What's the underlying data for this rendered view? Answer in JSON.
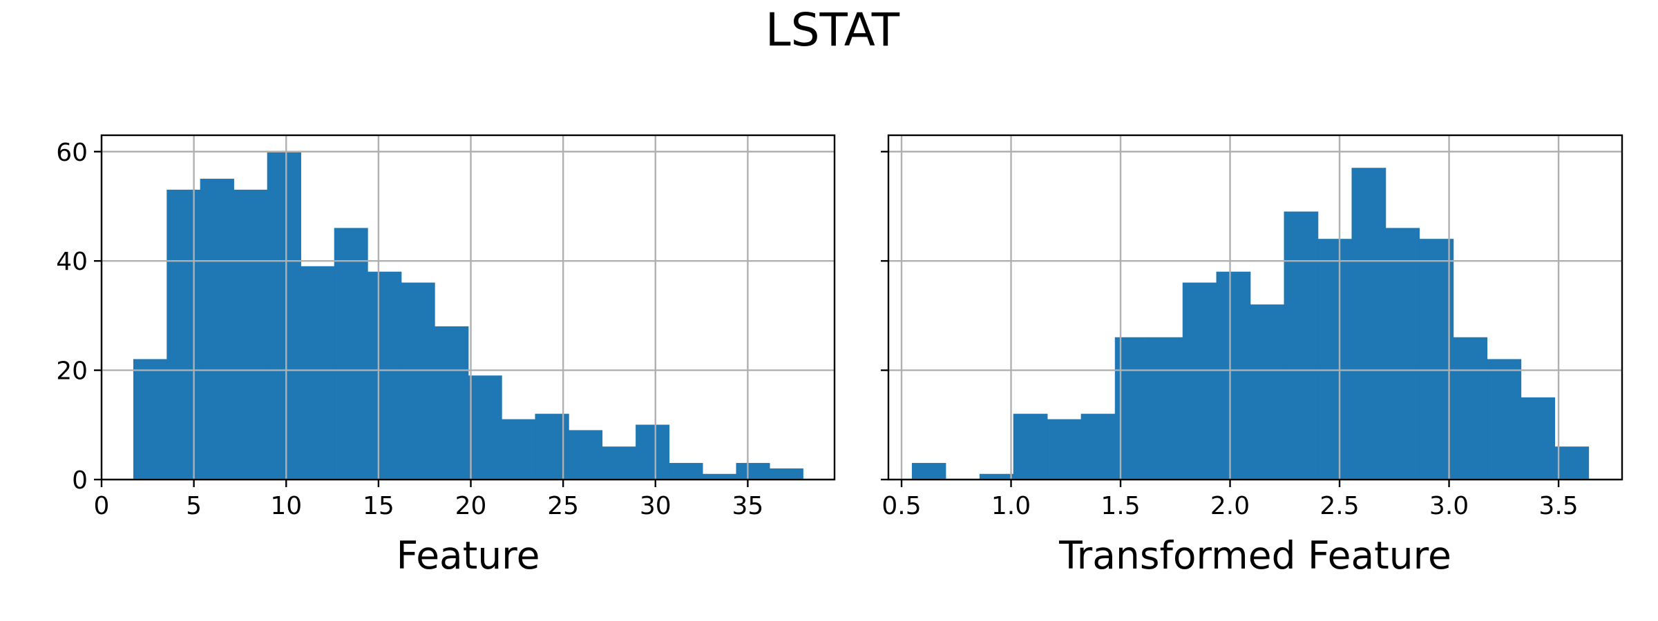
{
  "figure": {
    "title": "LSTAT"
  },
  "chart_data": [
    {
      "type": "bar",
      "title": "",
      "xlabel": "Feature",
      "ylabel": "",
      "xlim": [
        0,
        39.7
      ],
      "ylim": [
        0,
        63
      ],
      "grid": true,
      "color": "#1f77b4",
      "xticks": [
        0,
        5,
        10,
        15,
        20,
        25,
        30,
        35
      ],
      "xtick_labels": [
        "0",
        "5",
        "10",
        "15",
        "20",
        "25",
        "30",
        "35"
      ],
      "yticks": [
        0,
        20,
        40,
        60
      ],
      "ytick_labels": [
        "0",
        "20",
        "40",
        "60"
      ],
      "bin_edges": [
        1.73,
        3.54,
        5.35,
        7.17,
        8.98,
        10.8,
        12.61,
        14.42,
        16.24,
        18.05,
        19.87,
        21.68,
        23.49,
        25.31,
        27.12,
        28.94,
        30.75,
        32.56,
        34.38,
        36.19,
        38.0
      ],
      "values": [
        22,
        53,
        55,
        53,
        60,
        39,
        46,
        38,
        36,
        28,
        19,
        11,
        12,
        9,
        6,
        10,
        3,
        1,
        3,
        2
      ]
    },
    {
      "type": "bar",
      "title": "",
      "xlabel": "Transformed Feature",
      "ylabel": "",
      "xlim": [
        0.44,
        3.79
      ],
      "ylim": [
        0,
        63
      ],
      "grid": true,
      "color": "#1f77b4",
      "xticks": [
        0.5,
        1.0,
        1.5,
        2.0,
        2.5,
        3.0,
        3.5
      ],
      "xtick_labels": [
        "0.5",
        "1.0",
        "1.5",
        "2.0",
        "2.5",
        "3.0",
        "3.5"
      ],
      "yticks": [
        0,
        20,
        40,
        60
      ],
      "ytick_labels": [],
      "bin_edges": [
        0.548,
        0.702,
        0.857,
        1.011,
        1.166,
        1.32,
        1.475,
        1.629,
        1.784,
        1.938,
        2.093,
        2.247,
        2.402,
        2.556,
        2.711,
        2.865,
        3.02,
        3.174,
        3.329,
        3.483,
        3.638
      ],
      "values": [
        3,
        0,
        1,
        12,
        11,
        12,
        26,
        26,
        36,
        38,
        32,
        49,
        44,
        57,
        46,
        44,
        26,
        22,
        15,
        6
      ]
    }
  ]
}
